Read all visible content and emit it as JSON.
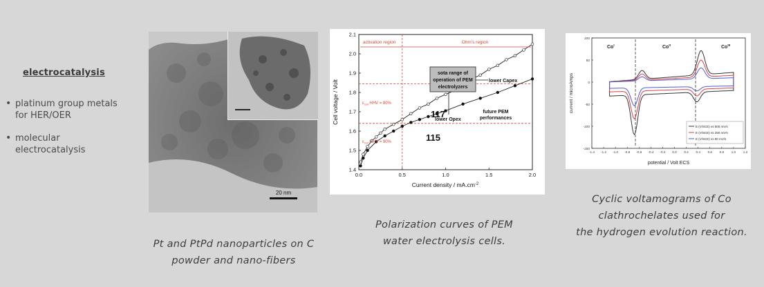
{
  "left_panel": {
    "heading": "electrocatalysis",
    "bullets": [
      {
        "line1": "platinum group metals",
        "line2": "for HER/OER"
      },
      {
        "line1": "molecular",
        "line2": "electrocatalysis"
      }
    ]
  },
  "figure1": {
    "scale_bar": "20 nm",
    "caption_line1": "Pt and PtPd nanoparticles on C",
    "caption_line2": "powder and nano-fibers"
  },
  "figure2": {
    "caption_line1": "Polarization curves of PEM",
    "caption_line2": "water electrolysis cells.",
    "chart_data": {
      "type": "line",
      "xlabel": "Current density / mA.cm",
      "xlabel_sup": "-2",
      "ylabel": "Cell voltage / Volt",
      "xlim": [
        0,
        2
      ],
      "ylim": [
        1.4,
        2.1
      ],
      "xticks": [
        "0.0",
        "0.5",
        "1.0",
        "1.5",
        "2.0"
      ],
      "yticks": [
        "1.4",
        "1.5",
        "1.6",
        "1.7",
        "1.8",
        "1.9",
        "2.0",
        "2.1"
      ],
      "series": [
        {
          "name": "117",
          "x": [
            0.02,
            0.05,
            0.1,
            0.15,
            0.2,
            0.25,
            0.3,
            0.4,
            0.5,
            0.6,
            0.7,
            0.8,
            0.9,
            1.0,
            1.1,
            1.2,
            1.3,
            1.4,
            1.5,
            1.6,
            1.7,
            1.8,
            1.9,
            2.0
          ],
          "y": [
            1.44,
            1.48,
            1.52,
            1.55,
            1.57,
            1.59,
            1.61,
            1.635,
            1.66,
            1.69,
            1.72,
            1.74,
            1.77,
            1.79,
            1.81,
            1.84,
            1.87,
            1.89,
            1.92,
            1.94,
            1.97,
            1.99,
            2.02,
            2.05
          ]
        },
        {
          "name": "115",
          "x": [
            0.02,
            0.05,
            0.1,
            0.2,
            0.3,
            0.4,
            0.5,
            0.6,
            0.7,
            0.8,
            0.9,
            1.0,
            1.2,
            1.4,
            1.6,
            1.8,
            2.0
          ],
          "y": [
            1.42,
            1.46,
            1.5,
            1.545,
            1.575,
            1.6,
            1.625,
            1.645,
            1.66,
            1.675,
            1.69,
            1.705,
            1.74,
            1.77,
            1.8,
            1.835,
            1.87
          ]
        }
      ],
      "annotations": {
        "activation_region": "activation region",
        "ohms_region": "Ohm's region",
        "hhv80": "ε",
        "hhv80_sub": "cell",
        "hhv80_rest": " HHV = 80%",
        "hhv90": "ε",
        "hhv90_sub": "cell",
        "hhv90_rest": " HHV = 90%",
        "sota_line1": "sota range of",
        "sota_line2": "operation of PEM",
        "sota_line3": "electrolyzers",
        "lower_capex": "lower Capex",
        "lower_opex": "lower Opex",
        "future_line1": "future PEM",
        "future_line2": "performances",
        "label_117": "117",
        "label_115": "115"
      },
      "guides": {
        "x_vertical": 0.5,
        "y_hhv80": 1.845,
        "y_hhv90": 1.64
      }
    }
  },
  "figure3": {
    "caption_line1": "Cyclic voltamograms of Co",
    "caption_line2": "clathrochelates used for",
    "caption_line3": "the hydrogen evolution reaction.",
    "chart_data": {
      "type": "line",
      "xlabel": "potential / Volt ECS",
      "ylabel": "current / microAmps",
      "xlim": [
        -1.4,
        1.2
      ],
      "ylim": [
        -150,
        100
      ],
      "xticks": [
        "-1.4",
        "-1.2",
        "-1.0",
        "-0.8",
        "-0.6",
        "-0.4",
        "-0.2",
        "0.0",
        "0.2",
        "0.4",
        "0.6",
        "0.8",
        "1.0",
        "1.2"
      ],
      "yticks": [
        "100",
        "50",
        "0",
        "-50",
        "-100",
        "-150"
      ],
      "regions": [
        "Co",
        "Co",
        "Co"
      ],
      "region_sups": [
        "I",
        "II",
        "III"
      ],
      "legend": [
        "E (V/SCE) vs 500 mV/s",
        "E (V/SCE) vs 250 mV/s",
        "E (V/SCE) vs 90 mV/s"
      ],
      "colors": [
        "#333333",
        "#d94040",
        "#4a5ad8"
      ]
    }
  }
}
